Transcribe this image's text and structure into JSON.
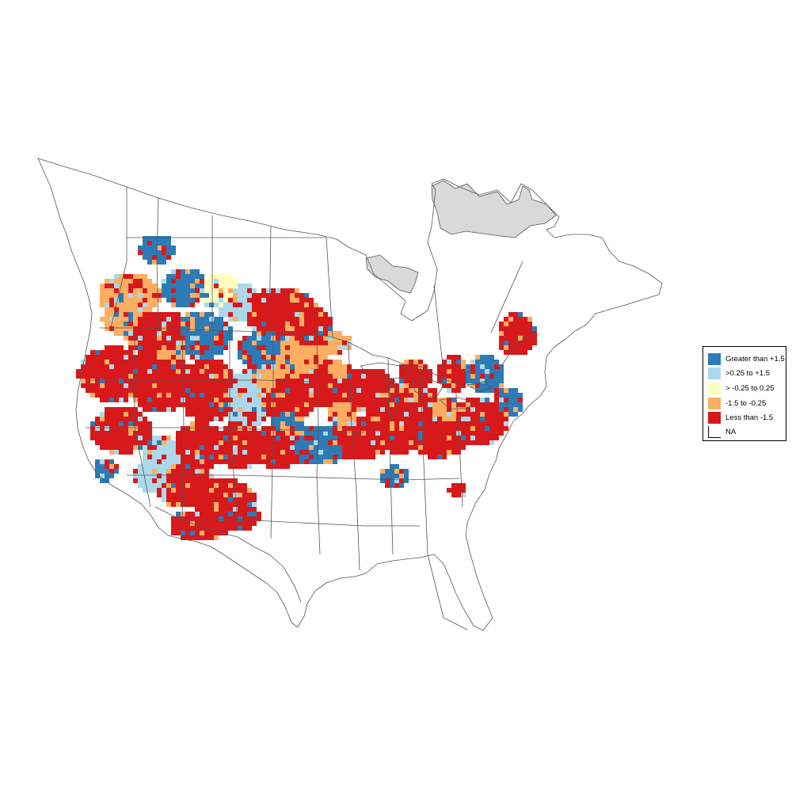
{
  "map": {
    "na_color": "#d9d9d9",
    "boundary_color": "#555555"
  },
  "legend": {
    "items": [
      {
        "label": "Greater than +1.5",
        "color": "#2c7bb6",
        "icon": "legend-swatch-blue"
      },
      {
        "label": ">0.25 to +1.5",
        "color": "#abd9e9",
        "icon": "legend-swatch-light-blue"
      },
      {
        "label": "> -0.25 to 0.25",
        "color": "#ffffbf",
        "icon": "legend-swatch-yellow"
      },
      {
        "label": "-1.5 to -0.25",
        "color": "#fdae61",
        "icon": "legend-swatch-orange"
      },
      {
        "label": "Less than -1.5",
        "color": "#d7191c",
        "icon": "legend-swatch-red"
      },
      {
        "label": "NA",
        "color": "#ffffff",
        "icon": "legend-swatch-na"
      }
    ]
  }
}
